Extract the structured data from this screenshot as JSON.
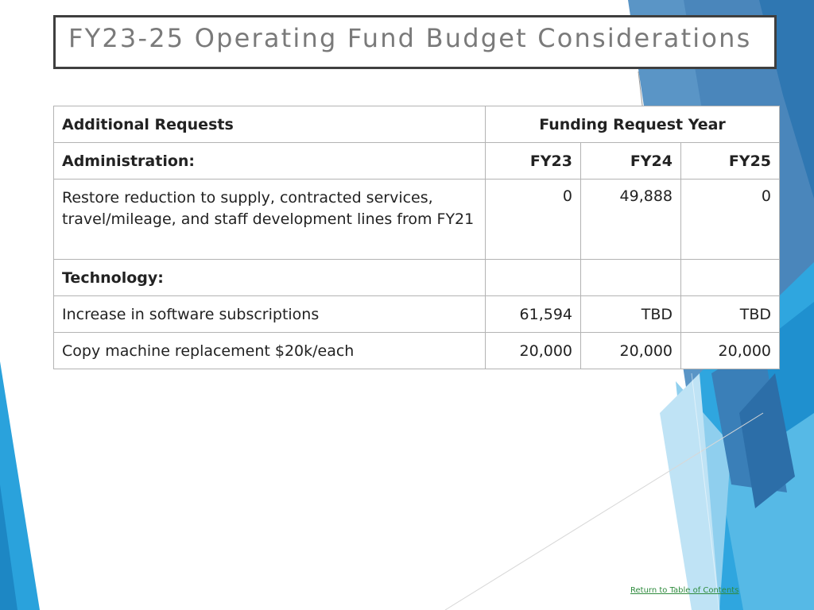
{
  "title": "FY23-25 Operating Fund Budget Considerations",
  "table": {
    "header": {
      "requests_label": "Additional Requests",
      "year_label": "Funding Request Year"
    },
    "sections": [
      {
        "label": "Administration:",
        "years": [
          "FY23",
          "FY24",
          "FY25"
        ],
        "items": [
          {
            "description": "Restore reduction to supply, contracted services, travel/mileage, and staff development lines from FY21",
            "values": [
              "0",
              "49,888",
              "0"
            ]
          }
        ]
      },
      {
        "label": "Technology:",
        "years": [
          "",
          "",
          ""
        ],
        "items": [
          {
            "description": "Increase in software subscriptions",
            "values": [
              "61,594",
              "TBD",
              "TBD"
            ]
          },
          {
            "description": "Copy machine replacement $20k/each",
            "values": [
              "20,000",
              "20,000",
              "20,000"
            ]
          }
        ]
      }
    ]
  },
  "footer": {
    "link_text": "Return to Table of Contents"
  },
  "colors": {
    "title_border": "#3f3f3f",
    "title_text": "#7a7a7a",
    "table_border": "#b3b3b3",
    "accent_blue": "#29a8e0",
    "link_green": "#2e8b3d"
  }
}
